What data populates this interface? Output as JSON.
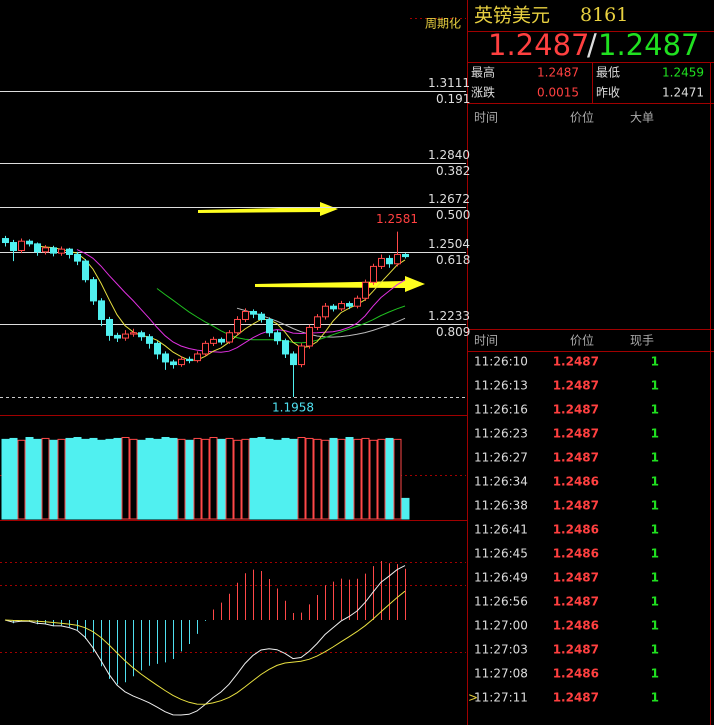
{
  "header": {
    "name": "英镑美元",
    "code": "8161",
    "price_left": "1.2487",
    "price_sep": "/",
    "price_right": "1.2487"
  },
  "quote": {
    "rows": [
      [
        "最高",
        1.2487,
        "最低",
        1.2459
      ],
      [
        "涨跌",
        0.0015,
        "昨收",
        1.2471
      ]
    ]
  },
  "big_orders": {
    "columns": [
      "时间",
      "价位",
      "大单"
    ]
  },
  "ticks": {
    "columns": [
      "时间",
      "价位",
      "现手"
    ],
    "rows": [
      [
        "11:26:10",
        1.2487,
        1
      ],
      [
        "11:26:13",
        1.2487,
        1
      ],
      [
        "11:26:16",
        1.2487,
        1
      ],
      [
        "11:26:23",
        1.2487,
        1
      ],
      [
        "11:26:27",
        1.2487,
        1
      ],
      [
        "11:26:34",
        1.2486,
        1
      ],
      [
        "11:26:38",
        1.2487,
        1
      ],
      [
        "11:26:41",
        1.2486,
        1
      ],
      [
        "11:26:45",
        1.2486,
        1
      ],
      [
        "11:26:49",
        1.2487,
        1
      ],
      [
        "11:26:56",
        1.2487,
        1
      ],
      [
        "11:27:00",
        1.2486,
        1
      ],
      [
        "11:27:03",
        1.2487,
        1
      ],
      [
        "11:27:08",
        1.2486,
        1
      ],
      [
        "11:27:11",
        1.2487,
        1
      ]
    ]
  },
  "chart": {
    "type": "candlestick",
    "period_label": "周期化",
    "ylim": [
      1.189,
      1.3454
    ],
    "fib_levels": [
      {
        "price": 1.3111,
        "ratio": 0.191
      },
      {
        "price": {
          "value": 1.284,
          "label": "1.2840"
        },
        "ratio": 0.382
      },
      {
        "price": 1.2672,
        "ratio": {
          "value": 0.5,
          "label": "0.500"
        }
      },
      {
        "price": 1.2504,
        "ratio": 0.618
      },
      {
        "price": 1.2233,
        "ratio": 0.809
      }
    ],
    "open": [
      1.2555,
      1.254,
      1.251,
      1.2545,
      1.2535,
      1.2505,
      1.252,
      1.25,
      1.2515,
      1.2495,
      1.247,
      1.24,
      1.232,
      1.225,
      1.219,
      1.218,
      1.2195,
      1.22,
      1.2185,
      1.216,
      1.212,
      1.209,
      1.208,
      1.21,
      1.2095,
      1.212,
      1.216,
      1.2175,
      1.2165,
      1.22,
      1.225,
      1.228,
      1.227,
      1.225,
      1.22,
      1.217,
      1.212,
      1.208,
      1.215,
      1.222,
      1.226,
      1.23,
      1.229,
      1.231,
      1.23,
      1.233,
      1.239,
      1.245,
      1.248,
      1.246,
      1.2495
    ],
    "high": [
      1.2565,
      1.255,
      1.2555,
      1.2552,
      1.254,
      1.253,
      1.2528,
      1.2525,
      1.252,
      1.2505,
      1.2478,
      1.241,
      1.233,
      1.226,
      1.22,
      1.221,
      1.2215,
      1.2208,
      1.2195,
      1.2168,
      1.213,
      1.2098,
      1.2112,
      1.211,
      1.213,
      1.217,
      1.2185,
      1.2182,
      1.221,
      1.2262,
      1.2292,
      1.2288,
      1.2278,
      1.2258,
      1.221,
      1.2178,
      1.213,
      1.216,
      1.223,
      1.227,
      1.2312,
      1.2308,
      1.232,
      1.2318,
      1.234,
      1.24,
      1.246,
      1.2495,
      1.2492,
      1.2581,
      1.25
    ],
    "low": [
      1.2525,
      1.247,
      1.25,
      1.2525,
      1.249,
      1.2495,
      1.2488,
      1.249,
      1.248,
      1.2455,
      1.239,
      1.2305,
      1.2225,
      1.217,
      1.2165,
      1.217,
      1.2185,
      1.217,
      1.214,
      1.21,
      1.206,
      1.2065,
      1.2072,
      1.2085,
      1.2088,
      1.2112,
      1.215,
      1.2155,
      1.2158,
      1.2192,
      1.224,
      1.2255,
      1.2238,
      1.2185,
      1.2155,
      1.2105,
      1.1958,
      1.207,
      1.214,
      1.221,
      1.225,
      1.228,
      1.2282,
      1.229,
      1.2292,
      1.232,
      1.238,
      1.244,
      1.2445,
      1.245,
      1.248
    ],
    "close": [
      1.254,
      1.251,
      1.2545,
      1.2535,
      1.2505,
      1.252,
      1.25,
      1.2515,
      1.2495,
      1.247,
      1.24,
      1.232,
      1.225,
      1.219,
      1.218,
      1.2195,
      1.22,
      1.2185,
      1.216,
      1.212,
      1.209,
      1.208,
      1.21,
      1.2095,
      1.212,
      1.216,
      1.2175,
      1.2165,
      1.22,
      1.225,
      1.228,
      1.227,
      1.225,
      1.22,
      1.217,
      1.212,
      1.208,
      1.215,
      1.222,
      1.226,
      1.23,
      1.229,
      1.231,
      1.23,
      1.233,
      1.239,
      1.245,
      1.248,
      1.246,
      1.2495,
      1.2487
    ],
    "volume": [
      85,
      86,
      84,
      87,
      85,
      86,
      84,
      85,
      86,
      87,
      85,
      86,
      84,
      85,
      86,
      87,
      85,
      84,
      86,
      85,
      87,
      86,
      85,
      84,
      86,
      85,
      87,
      85,
      86,
      84,
      85,
      86,
      87,
      85,
      84,
      86,
      85,
      87,
      86,
      85,
      84,
      86,
      85,
      87,
      85,
      86,
      84,
      85,
      86,
      85,
      22
    ],
    "volume_ylim": [
      0,
      95
    ]
  }
}
